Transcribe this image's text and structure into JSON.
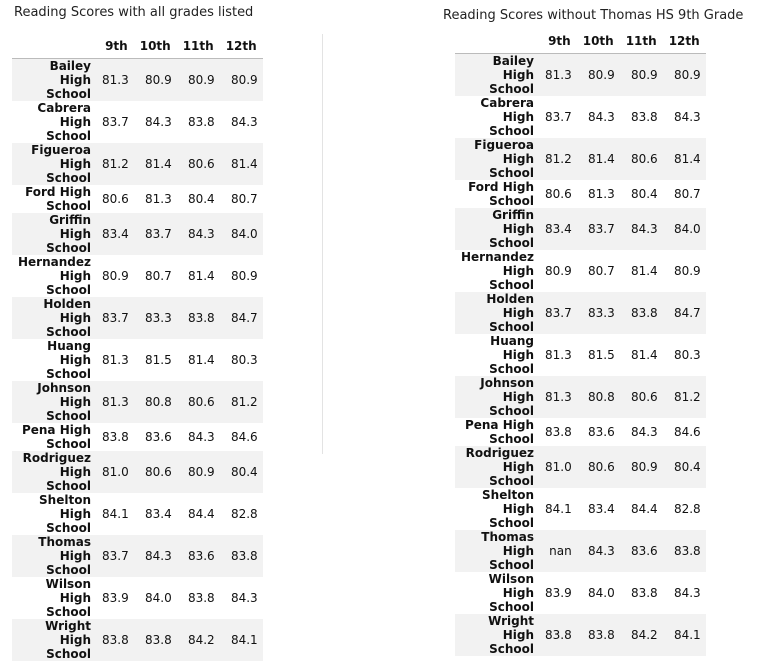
{
  "left": {
    "title": "Reading Scores with all grades listed",
    "headers": [
      "",
      "9th",
      "10th",
      "11th",
      "12th"
    ],
    "rows": [
      [
        "Bailey High School",
        "81.3",
        "80.9",
        "80.9",
        "80.9"
      ],
      [
        "Cabrera High School",
        "83.7",
        "84.3",
        "83.8",
        "84.3"
      ],
      [
        "Figueroa High School",
        "81.2",
        "81.4",
        "80.6",
        "81.4"
      ],
      [
        "Ford High School",
        "80.6",
        "81.3",
        "80.4",
        "80.7"
      ],
      [
        "Griffin High School",
        "83.4",
        "83.7",
        "84.3",
        "84.0"
      ],
      [
        "Hernandez High School",
        "80.9",
        "80.7",
        "81.4",
        "80.9"
      ],
      [
        "Holden High School",
        "83.7",
        "83.3",
        "83.8",
        "84.7"
      ],
      [
        "Huang High School",
        "81.3",
        "81.5",
        "81.4",
        "80.3"
      ],
      [
        "Johnson High School",
        "81.3",
        "80.8",
        "80.6",
        "81.2"
      ],
      [
        "Pena High School",
        "83.8",
        "83.6",
        "84.3",
        "84.6"
      ],
      [
        "Rodriguez High School",
        "81.0",
        "80.6",
        "80.9",
        "80.4"
      ],
      [
        "Shelton High School",
        "84.1",
        "83.4",
        "84.4",
        "82.8"
      ],
      [
        "Thomas High School",
        "83.7",
        "84.3",
        "83.6",
        "83.8"
      ],
      [
        "Wilson High School",
        "83.9",
        "84.0",
        "83.8",
        "84.3"
      ],
      [
        "Wright High School",
        "83.8",
        "83.8",
        "84.2",
        "84.1"
      ]
    ]
  },
  "right": {
    "title": "Reading Scores without Thomas HS 9th Grade",
    "headers": [
      "",
      "9th",
      "10th",
      "11th",
      "12th"
    ],
    "rows": [
      [
        "Bailey High School",
        "81.3",
        "80.9",
        "80.9",
        "80.9"
      ],
      [
        "Cabrera High School",
        "83.7",
        "84.3",
        "83.8",
        "84.3"
      ],
      [
        "Figueroa High School",
        "81.2",
        "81.4",
        "80.6",
        "81.4"
      ],
      [
        "Ford High School",
        "80.6",
        "81.3",
        "80.4",
        "80.7"
      ],
      [
        "Griffin High School",
        "83.4",
        "83.7",
        "84.3",
        "84.0"
      ],
      [
        "Hernandez High School",
        "80.9",
        "80.7",
        "81.4",
        "80.9"
      ],
      [
        "Holden High School",
        "83.7",
        "83.3",
        "83.8",
        "84.7"
      ],
      [
        "Huang High School",
        "81.3",
        "81.5",
        "81.4",
        "80.3"
      ],
      [
        "Johnson High School",
        "81.3",
        "80.8",
        "80.6",
        "81.2"
      ],
      [
        "Pena High School",
        "83.8",
        "83.6",
        "84.3",
        "84.6"
      ],
      [
        "Rodriguez High School",
        "81.0",
        "80.6",
        "80.9",
        "80.4"
      ],
      [
        "Shelton High School",
        "84.1",
        "83.4",
        "84.4",
        "82.8"
      ],
      [
        "Thomas High School",
        "nan",
        "84.3",
        "83.6",
        "83.8"
      ],
      [
        "Wilson High School",
        "83.9",
        "84.0",
        "83.8",
        "84.3"
      ],
      [
        "Wright High School",
        "83.8",
        "83.8",
        "84.2",
        "84.1"
      ]
    ]
  }
}
